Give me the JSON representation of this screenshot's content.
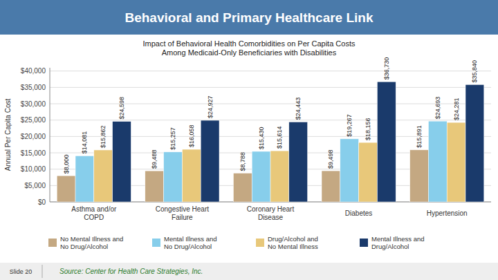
{
  "chart_data": {
    "type": "bar",
    "title": "Behavioral and Primary Healthcare Link",
    "subtitle": [
      "Impact of Behavioral Health Comorbidities on Per Capita Costs",
      "Among Medicaid-Only Beneficiaries with Disabilities"
    ],
    "ylabel": "Annual Per Capita Cost",
    "categories": [
      "Asthma and/or\nCOPD",
      "Congestive Heart\nFailure",
      "Coronary Heart\nDisease",
      "Diabetes",
      "Hypertension"
    ],
    "series": [
      {
        "name": "No Mental Illness and\nNo Drug/Alcohol",
        "color": "#c4a882",
        "values": [
          8000,
          9488,
          8788,
          9498,
          15891
        ],
        "value_labels": [
          "$8,000",
          "$9,488",
          "$8,788",
          "$9,498",
          "$15,891"
        ]
      },
      {
        "name": "Mental Illness and\nNo Drug/Alcohol",
        "color": "#87ceeb",
        "values": [
          14081,
          15257,
          15430,
          19267,
          24693
        ],
        "value_labels": [
          "$14,081",
          "$15,257",
          "$15,430",
          "$19,267",
          "$24,693"
        ]
      },
      {
        "name": "Drug/Alcohol and\nNo Mental Illness",
        "color": "#e8c87a",
        "values": [
          15862,
          16058,
          15614,
          18156,
          24281
        ],
        "value_labels": [
          "$15,862",
          "$16,058",
          "$15,614",
          "$18,156",
          "$24,281"
        ]
      },
      {
        "name": "Mental Illness and\nDrug/Alcohol",
        "color": "#1a3a6b",
        "values": [
          24598,
          24927,
          24443,
          36730,
          35840
        ],
        "value_labels": [
          "$24,598",
          "$24,927",
          "$24,443",
          "$36,730",
          "$35,840"
        ]
      }
    ],
    "ylim": [
      0,
      41000
    ],
    "yticks": [
      {
        "value": 0,
        "label": "$0"
      },
      {
        "value": 5000,
        "label": "$5,000"
      },
      {
        "value": 10000,
        "label": "$10,000"
      },
      {
        "value": 15000,
        "label": "$15,000"
      },
      {
        "value": 20000,
        "label": "$20,000"
      },
      {
        "value": 25000,
        "label": "$25,000"
      },
      {
        "value": 30000,
        "label": "$30,000"
      },
      {
        "value": 35000,
        "label": "$35,000"
      },
      {
        "value": 40000,
        "label": "$40,000"
      }
    ],
    "grid": true,
    "data_labels": true,
    "legend": "bottom",
    "annotations": [
      "Slide 20",
      "Source: Center for Health Care Strategies, Inc."
    ]
  }
}
